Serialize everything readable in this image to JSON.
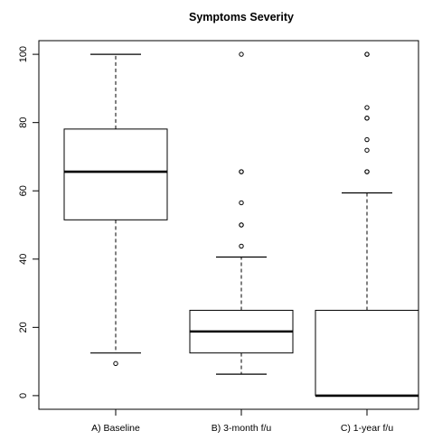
{
  "chart_data": {
    "type": "boxplot",
    "title": "Symptoms Severity",
    "xlabel": "",
    "ylabel": "",
    "ylim": [
      -4,
      104
    ],
    "yticks": [
      0,
      20,
      40,
      60,
      80,
      100
    ],
    "grid": false,
    "categories": [
      "A) Baseline",
      "B) 3-month f/u",
      "C) 1-year f/u"
    ],
    "boxes": [
      {
        "category": "A) Baseline",
        "whisker_low": 12.5,
        "q1": 51.5,
        "median": 65.6,
        "q3": 78.1,
        "whisker_high": 100,
        "outliers": [
          9.4
        ]
      },
      {
        "category": "B) 3-month f/u",
        "whisker_low": 6.3,
        "q1": 12.5,
        "median": 18.8,
        "q3": 25.0,
        "whisker_high": 40.6,
        "outliers": [
          43.8,
          50.0,
          50.0,
          56.5,
          65.6,
          65.6,
          100
        ]
      },
      {
        "category": "C) 1-year f/u",
        "whisker_low": 0,
        "q1": 0,
        "median": 0,
        "q3": 25.0,
        "whisker_high": 59.4,
        "outliers": [
          65.6,
          65.6,
          71.9,
          75.0,
          81.3,
          81.3,
          84.4,
          100,
          100
        ]
      }
    ]
  }
}
